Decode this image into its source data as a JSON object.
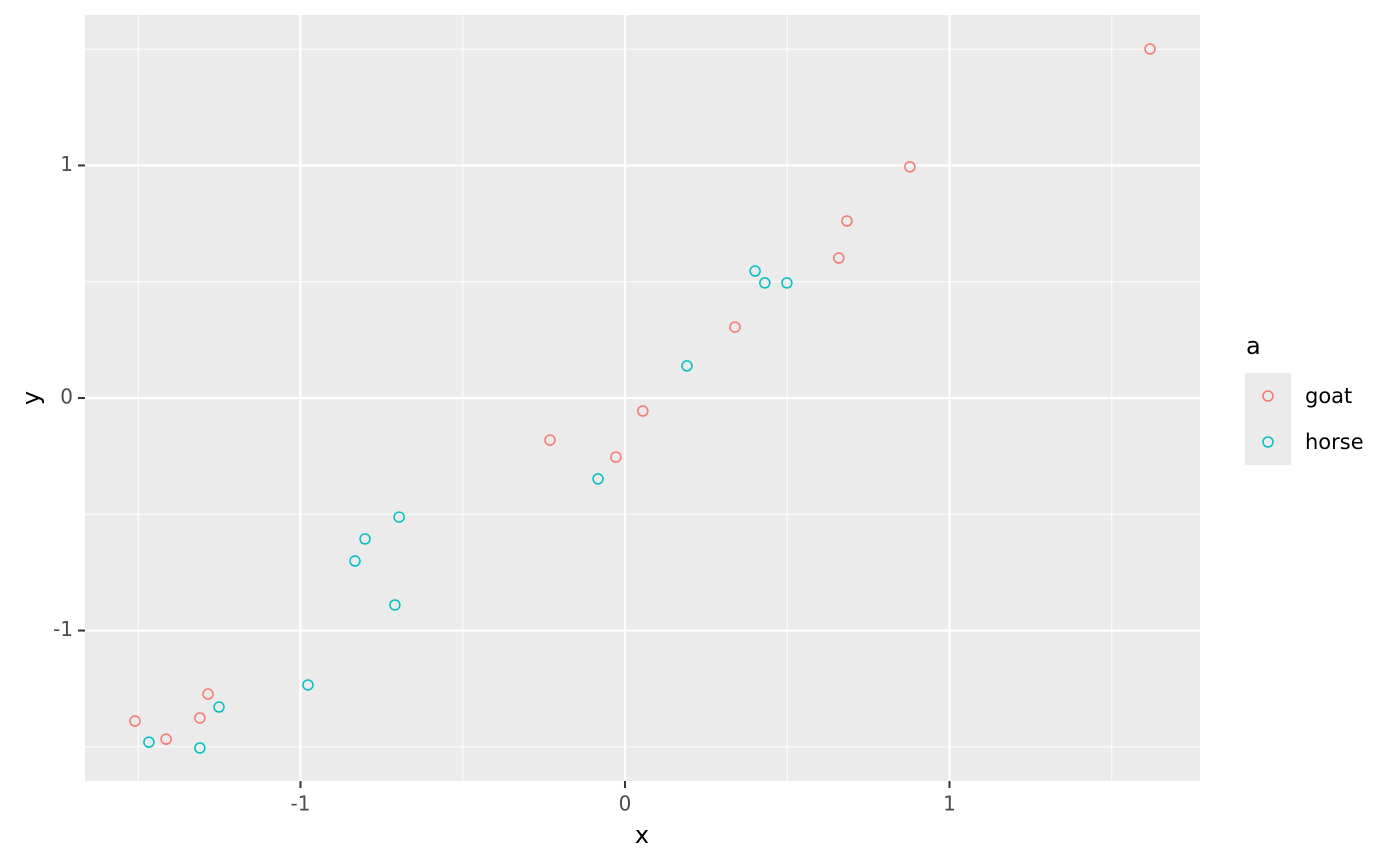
{
  "chart_data": {
    "type": "scatter",
    "x_label": "x",
    "y_label": "y",
    "legend_title": "a",
    "xlim": [
      -1.664,
      1.772
    ],
    "ylim": [
      -1.647,
      1.647
    ],
    "xticks": [
      -1,
      0,
      1
    ],
    "yticks": [
      -1,
      0,
      1
    ],
    "minor_xticks": [
      -1.5,
      -0.5,
      0.5,
      1.5
    ],
    "minor_yticks": [
      -1.5,
      -0.5,
      0.5,
      1.5
    ],
    "grid": true,
    "legend": "right",
    "series": [
      {
        "name": "goat",
        "color": "#F8766D",
        "x": [
          1.618,
          0.878,
          0.684,
          0.659,
          0.339,
          0.055,
          -0.028,
          -0.231,
          -1.285,
          -1.31,
          -1.414,
          -1.51
        ],
        "values": [
          1.501,
          0.994,
          0.761,
          0.602,
          0.305,
          -0.056,
          -0.254,
          -0.181,
          -1.273,
          -1.376,
          -1.467,
          -1.389
        ]
      },
      {
        "name": "horse",
        "color": "#00BFC4",
        "x": [
          0.401,
          0.431,
          0.499,
          0.191,
          -0.083,
          -0.696,
          -0.801,
          -0.832,
          -0.709,
          -0.977,
          -1.251,
          -1.467,
          -1.31
        ],
        "values": [
          0.546,
          0.495,
          0.495,
          0.138,
          -0.348,
          -0.512,
          -0.606,
          -0.701,
          -0.89,
          -1.234,
          -1.329,
          -1.48,
          -1.505
        ]
      }
    ]
  }
}
